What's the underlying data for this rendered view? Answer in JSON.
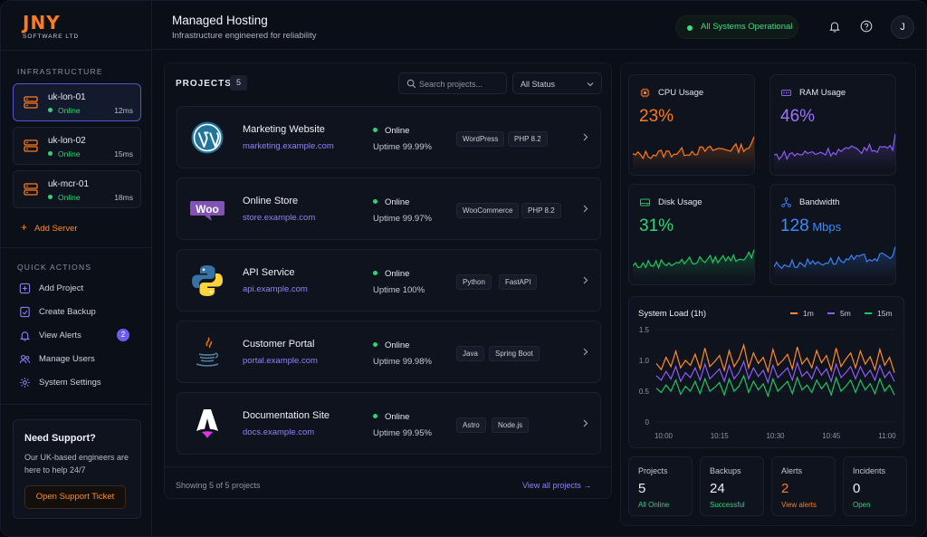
{
  "brand": {
    "name": "JNY",
    "sub": "SOFTWARE LTD"
  },
  "header": {
    "title": "Managed Hosting",
    "subtitle": "Infrastructure engineered for reliability",
    "status": "All Systems Operational",
    "avatar_letter": "J"
  },
  "sidebar": {
    "infra_title": "INFRASTRUCTURE",
    "servers": [
      {
        "name": "uk-lon-01",
        "status": "Online",
        "ping": "12ms"
      },
      {
        "name": "uk-lon-02",
        "status": "Online",
        "ping": "15ms"
      },
      {
        "name": "uk-mcr-01",
        "status": "Online",
        "ping": "18ms"
      }
    ],
    "add_server": "Add Server",
    "qa_title": "QUICK ACTIONS",
    "actions": [
      {
        "label": "Add Project",
        "icon": "add-icon"
      },
      {
        "label": "Create Backup",
        "icon": "backup-icon"
      },
      {
        "label": "View Alerts",
        "icon": "bell-icon",
        "badge": "2"
      },
      {
        "label": "Manage Users",
        "icon": "users-icon"
      },
      {
        "label": "System Settings",
        "icon": "gear-icon"
      }
    ],
    "support": {
      "title": "Need Support?",
      "desc": "Our UK-based engineers are here to help 24/7",
      "button": "Open Support Ticket"
    }
  },
  "projects": {
    "title": "PROJECTS",
    "count": "5",
    "search_placeholder": "Search projects...",
    "status_filter": "All Status",
    "items": [
      {
        "name": "Marketing Website",
        "url": "marketing.example.com",
        "status": "Online",
        "uptime": "Uptime 99.99%",
        "tags": [
          "WordPress",
          "PHP 8.2"
        ],
        "logo": "wordpress-logo"
      },
      {
        "name": "Online Store",
        "url": "store.example.com",
        "status": "Online",
        "uptime": "Uptime 99.97%",
        "tags": [
          "WooCommerce",
          "PHP 8.2"
        ],
        "logo": "woocommerce-logo"
      },
      {
        "name": "API Service",
        "url": "api.example.com",
        "status": "Online",
        "uptime": "Uptime 100%",
        "tags": [
          "Python",
          "FastAPI"
        ],
        "logo": "python-logo"
      },
      {
        "name": "Customer Portal",
        "url": "portal.example.com",
        "status": "Online",
        "uptime": "Uptime 99.98%",
        "tags": [
          "Java",
          "Spring Boot"
        ],
        "logo": "java-logo"
      },
      {
        "name": "Documentation Site",
        "url": "docs.example.com",
        "status": "Online",
        "uptime": "Uptime 99.95%",
        "tags": [
          "Astro",
          "Node.js"
        ],
        "logo": "astro-logo"
      }
    ],
    "footer_text": "Showing 5 of 5 projects",
    "view_all": "View all projects"
  },
  "metrics": [
    {
      "label": "CPU Usage",
      "value": "23",
      "unit": "%",
      "color": "#ff7a1a",
      "icon": "cpu-icon"
    },
    {
      "label": "RAM Usage",
      "value": "46",
      "unit": "%",
      "color": "#8b5cf6",
      "icon": "ram-icon"
    },
    {
      "label": "Disk Usage",
      "value": "31",
      "unit": "%",
      "color": "#22c55e",
      "icon": "disk-icon"
    },
    {
      "label": "Bandwidth",
      "value": "128",
      "unit": " Mbps",
      "color": "#3b82f6",
      "icon": "bandwidth-icon"
    }
  ],
  "chart_data": {
    "type": "line",
    "title": "System Load (1h)",
    "x_ticks": [
      "10:00",
      "10:15",
      "10:30",
      "10:45",
      "11:00"
    ],
    "y_ticks": [
      "1.5",
      "1.0",
      "0.5",
      "0"
    ],
    "ylim": [
      0,
      1.5
    ],
    "series": [
      {
        "name": "1m",
        "color": "#ff8a2a",
        "values": [
          0.95,
          0.85,
          1.05,
          0.9,
          1.15,
          0.88,
          1.0,
          0.92,
          1.1,
          0.86,
          1.2,
          0.9,
          0.98,
          1.08,
          0.84,
          1.16,
          0.9,
          1.02,
          1.25,
          0.88,
          1.12,
          0.95,
          1.05,
          0.82,
          1.18,
          0.92,
          1.0,
          1.1,
          0.86,
          1.22,
          0.94,
          1.04,
          0.88,
          1.16,
          0.96,
          1.08,
          0.84,
          1.2,
          0.9,
          1.02,
          1.12,
          0.88,
          1.15,
          0.94,
          1.06,
          0.85,
          1.18,
          0.92,
          1.05,
          0.8
        ]
      },
      {
        "name": "5m",
        "color": "#8b5cf6",
        "values": [
          0.75,
          0.68,
          0.82,
          0.7,
          0.9,
          0.66,
          0.8,
          0.72,
          0.88,
          0.68,
          0.94,
          0.7,
          0.78,
          0.86,
          0.66,
          0.92,
          0.7,
          0.8,
          0.98,
          0.7,
          0.88,
          0.74,
          0.84,
          0.64,
          0.92,
          0.72,
          0.8,
          0.88,
          0.68,
          0.96,
          0.74,
          0.82,
          0.7,
          0.9,
          0.76,
          0.86,
          0.66,
          0.94,
          0.72,
          0.8,
          0.9,
          0.7,
          0.9,
          0.74,
          0.84,
          0.68,
          0.92,
          0.72,
          0.82,
          0.66
        ]
      },
      {
        "name": "15m",
        "color": "#22c55e",
        "values": [
          0.55,
          0.48,
          0.6,
          0.5,
          0.68,
          0.45,
          0.58,
          0.5,
          0.66,
          0.46,
          0.7,
          0.5,
          0.56,
          0.64,
          0.44,
          0.7,
          0.5,
          0.58,
          0.75,
          0.48,
          0.66,
          0.52,
          0.62,
          0.42,
          0.7,
          0.5,
          0.58,
          0.66,
          0.46,
          0.72,
          0.52,
          0.6,
          0.48,
          0.68,
          0.54,
          0.64,
          0.44,
          0.72,
          0.5,
          0.58,
          0.68,
          0.48,
          0.68,
          0.52,
          0.62,
          0.46,
          0.7,
          0.5,
          0.6,
          0.44
        ]
      }
    ]
  },
  "stats": [
    {
      "label": "Projects",
      "value": "5",
      "sub": "All Online",
      "color": "#34d37a"
    },
    {
      "label": "Backups",
      "value": "24",
      "sub": "Successful",
      "color": "#34d37a"
    },
    {
      "label": "Alerts",
      "value": "2",
      "sub": "View alerts",
      "color": "#ff7a1a"
    },
    {
      "label": "Incidents",
      "value": "0",
      "sub": "Open",
      "color": "#34d37a"
    }
  ]
}
